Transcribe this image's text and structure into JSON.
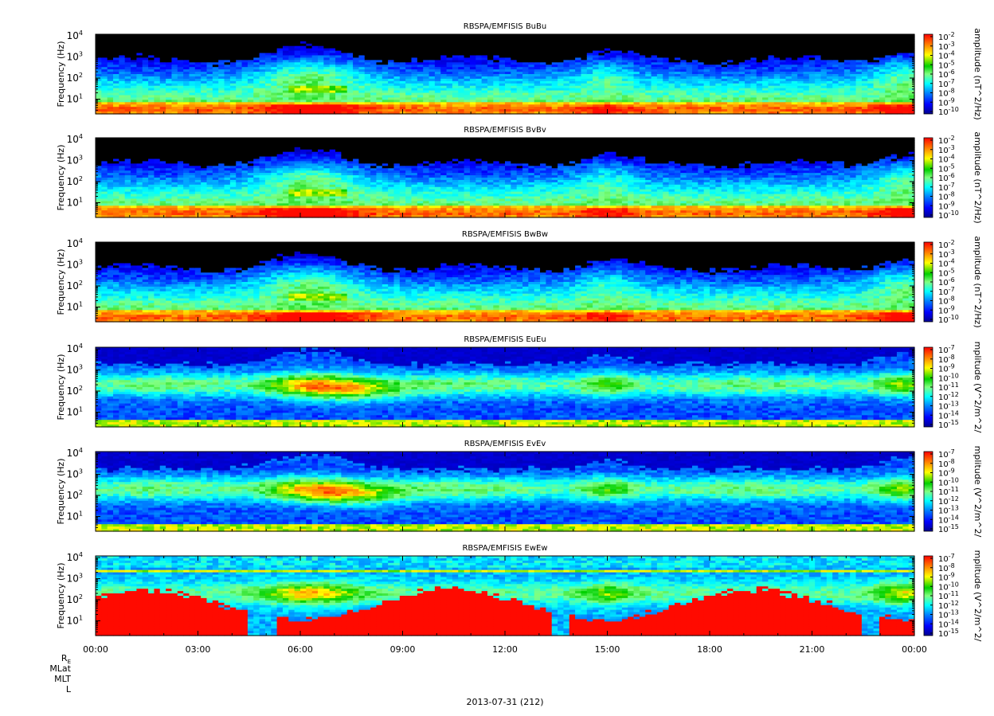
{
  "chart_data": {
    "type": "heatmap",
    "x_tick_labels": [
      "00:00",
      "03:00",
      "06:00",
      "09:00",
      "12:00",
      "15:00",
      "18:00",
      "21:00",
      "00:00"
    ],
    "x_range_hours": [
      0,
      24
    ],
    "footer_labels": [
      "R",
      "MLat",
      "MLT",
      "L"
    ],
    "footer_subscript": "E",
    "date_label": "2013-07-31 (212)",
    "y_axis": {
      "label": "Frequency (Hz)",
      "scale": "log",
      "range": [
        2,
        12000
      ]
    },
    "colormap": [
      "#000090",
      "#0000ff",
      "#0080ff",
      "#00ffff",
      "#80ff80",
      "#00d000",
      "#ffff00",
      "#ff8000",
      "#ff0000"
    ],
    "panels": [
      {
        "title": "RBSPA/EMFISIS  BuBu",
        "ylabel": "Frequency (Hz)",
        "yticks": [
          "10",
          "10",
          "10",
          "10"
        ],
        "yticks_exp": [
          "4",
          "3",
          "2",
          "1"
        ],
        "colorbar_label": "amplitude (nT^2/Hz)",
        "colorbar_ticks": [
          "10",
          "10",
          "10",
          "10",
          "10",
          "10",
          "10",
          "10",
          "10"
        ],
        "colorbar_exps": [
          "-2",
          "-3",
          "-4",
          "-5",
          "-6",
          "-7",
          "-8",
          "-9",
          "-10"
        ]
      },
      {
        "title": "RBSPA/EMFISIS  BvBv",
        "ylabel": "Frequency (Hz)",
        "yticks": [
          "10",
          "10",
          "10",
          "10"
        ],
        "yticks_exp": [
          "4",
          "3",
          "2",
          "1"
        ],
        "colorbar_label": "amplitude (nT^2/Hz)",
        "colorbar_ticks": [
          "10",
          "10",
          "10",
          "10",
          "10",
          "10",
          "10",
          "10",
          "10"
        ],
        "colorbar_exps": [
          "-2",
          "-3",
          "-4",
          "-5",
          "-6",
          "-7",
          "-8",
          "-9",
          "-10"
        ]
      },
      {
        "title": "RBSPA/EMFISIS  BwBw",
        "ylabel": "Frequency (Hz)",
        "yticks": [
          "10",
          "10",
          "10",
          "10"
        ],
        "yticks_exp": [
          "4",
          "3",
          "2",
          "1"
        ],
        "colorbar_label": "amplitude (nT^2/Hz)",
        "colorbar_ticks": [
          "10",
          "10",
          "10",
          "10",
          "10",
          "10",
          "10",
          "10",
          "10"
        ],
        "colorbar_exps": [
          "-2",
          "-3",
          "-4",
          "-5",
          "-6",
          "-7",
          "-8",
          "-9",
          "-10"
        ]
      },
      {
        "title": "RBSPA/EMFISIS  EuEu",
        "ylabel": "Frequency (Hz)",
        "yticks": [
          "10",
          "10",
          "10",
          "10"
        ],
        "yticks_exp": [
          "4",
          "3",
          "2",
          "1"
        ],
        "colorbar_label": "mplitude (V^2/m^2/",
        "colorbar_ticks": [
          "10",
          "10",
          "10",
          "10",
          "10",
          "10",
          "10",
          "10",
          "10"
        ],
        "colorbar_exps": [
          "-7",
          "-8",
          "-9",
          "-10",
          "-11",
          "-12",
          "-13",
          "-14",
          "-15"
        ]
      },
      {
        "title": "RBSPA/EMFISIS  EvEv",
        "ylabel": "Frequency (Hz)",
        "yticks": [
          "10",
          "10",
          "10",
          "10"
        ],
        "yticks_exp": [
          "4",
          "3",
          "2",
          "1"
        ],
        "colorbar_label": "mplitude (V^2/m^2/",
        "colorbar_ticks": [
          "10",
          "10",
          "10",
          "10",
          "10",
          "10",
          "10",
          "10",
          "10"
        ],
        "colorbar_exps": [
          "-7",
          "-8",
          "-9",
          "-10",
          "-11",
          "-12",
          "-13",
          "-14",
          "-15"
        ]
      },
      {
        "title": "RBSPA/EMFISIS  EwEw",
        "ylabel": "Frequency (Hz)",
        "yticks": [
          "10",
          "10",
          "10",
          "10"
        ],
        "yticks_exp": [
          "4",
          "3",
          "2",
          "1"
        ],
        "colorbar_label": "mplitude (V^2/m^2/",
        "colorbar_ticks": [
          "10",
          "10",
          "10",
          "10",
          "10",
          "10",
          "10",
          "10",
          "10"
        ],
        "colorbar_exps": [
          "-7",
          "-8",
          "-9",
          "-10",
          "-11",
          "-12",
          "-13",
          "-14",
          "-15"
        ]
      }
    ]
  }
}
